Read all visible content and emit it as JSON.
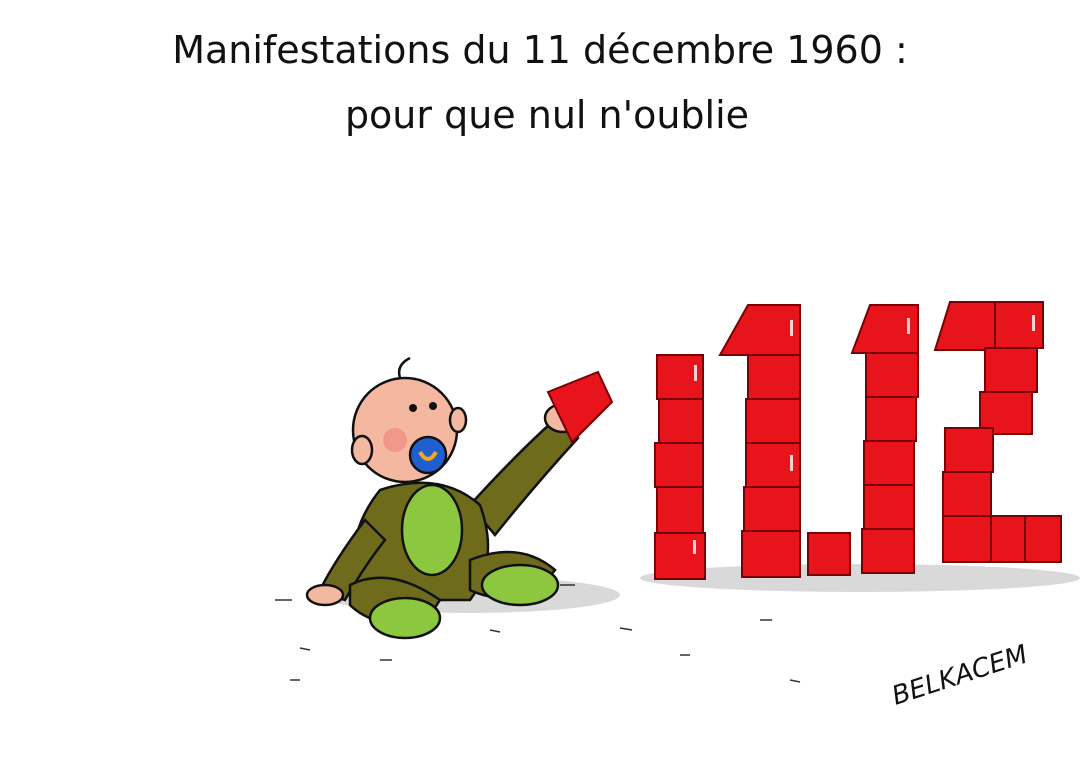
{
  "title": {
    "line1": "Manifestations du 11 décembre 1960 :",
    "line2": "pour que nul n'oublie"
  },
  "signature": "BELKACEM"
}
